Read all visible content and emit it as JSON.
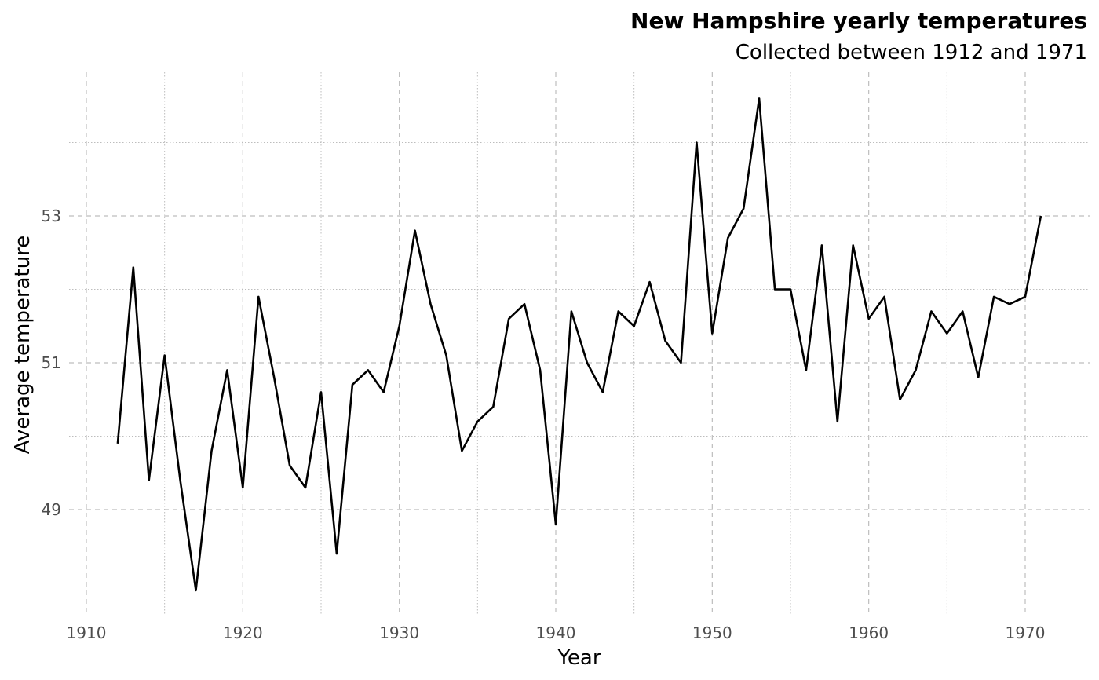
{
  "chart_data": {
    "type": "line",
    "title": "New Hampshire yearly temperatures",
    "subtitle": "Collected between 1912 and 1971",
    "xlabel": "Year",
    "ylabel": "Average temperature",
    "xlim": [
      1909,
      1973.5
    ],
    "ylim": [
      47.6,
      54.9
    ],
    "x_ticks": [
      1910,
      1920,
      1930,
      1940,
      1950,
      1960,
      1970
    ],
    "x_minor_ticks": [
      1915,
      1925,
      1935,
      1945,
      1955,
      1965
    ],
    "y_ticks": [
      49,
      51,
      53
    ],
    "y_minor_ticks": [
      48,
      50,
      52,
      54
    ],
    "grid": true,
    "line_color": "#000000",
    "grid_color": "#bdbdbd",
    "x": [
      1912,
      1913,
      1914,
      1915,
      1916,
      1917,
      1918,
      1919,
      1920,
      1921,
      1922,
      1923,
      1924,
      1925,
      1926,
      1927,
      1928,
      1929,
      1930,
      1931,
      1932,
      1933,
      1934,
      1935,
      1936,
      1937,
      1938,
      1939,
      1940,
      1941,
      1942,
      1943,
      1944,
      1945,
      1946,
      1947,
      1948,
      1949,
      1950,
      1951,
      1952,
      1953,
      1954,
      1955,
      1956,
      1957,
      1958,
      1959,
      1960,
      1961,
      1962,
      1963,
      1964,
      1965,
      1966,
      1967,
      1968,
      1969,
      1970,
      1971
    ],
    "values": [
      49.9,
      52.3,
      49.4,
      51.1,
      49.4,
      47.9,
      49.8,
      50.9,
      49.3,
      51.9,
      50.8,
      49.6,
      49.3,
      50.6,
      48.4,
      50.7,
      50.9,
      50.6,
      51.5,
      52.8,
      51.8,
      51.1,
      49.8,
      50.2,
      50.4,
      51.6,
      51.8,
      50.9,
      48.8,
      51.7,
      51.0,
      50.6,
      51.7,
      51.5,
      52.1,
      51.3,
      51.0,
      54.0,
      51.4,
      52.7,
      53.1,
      54.6,
      52.0,
      52.0,
      50.9,
      52.6,
      50.2,
      52.6,
      51.6,
      51.9,
      50.5,
      50.9,
      51.7,
      51.4,
      51.7,
      50.8,
      51.9,
      51.8,
      51.9,
      53.0
    ]
  }
}
